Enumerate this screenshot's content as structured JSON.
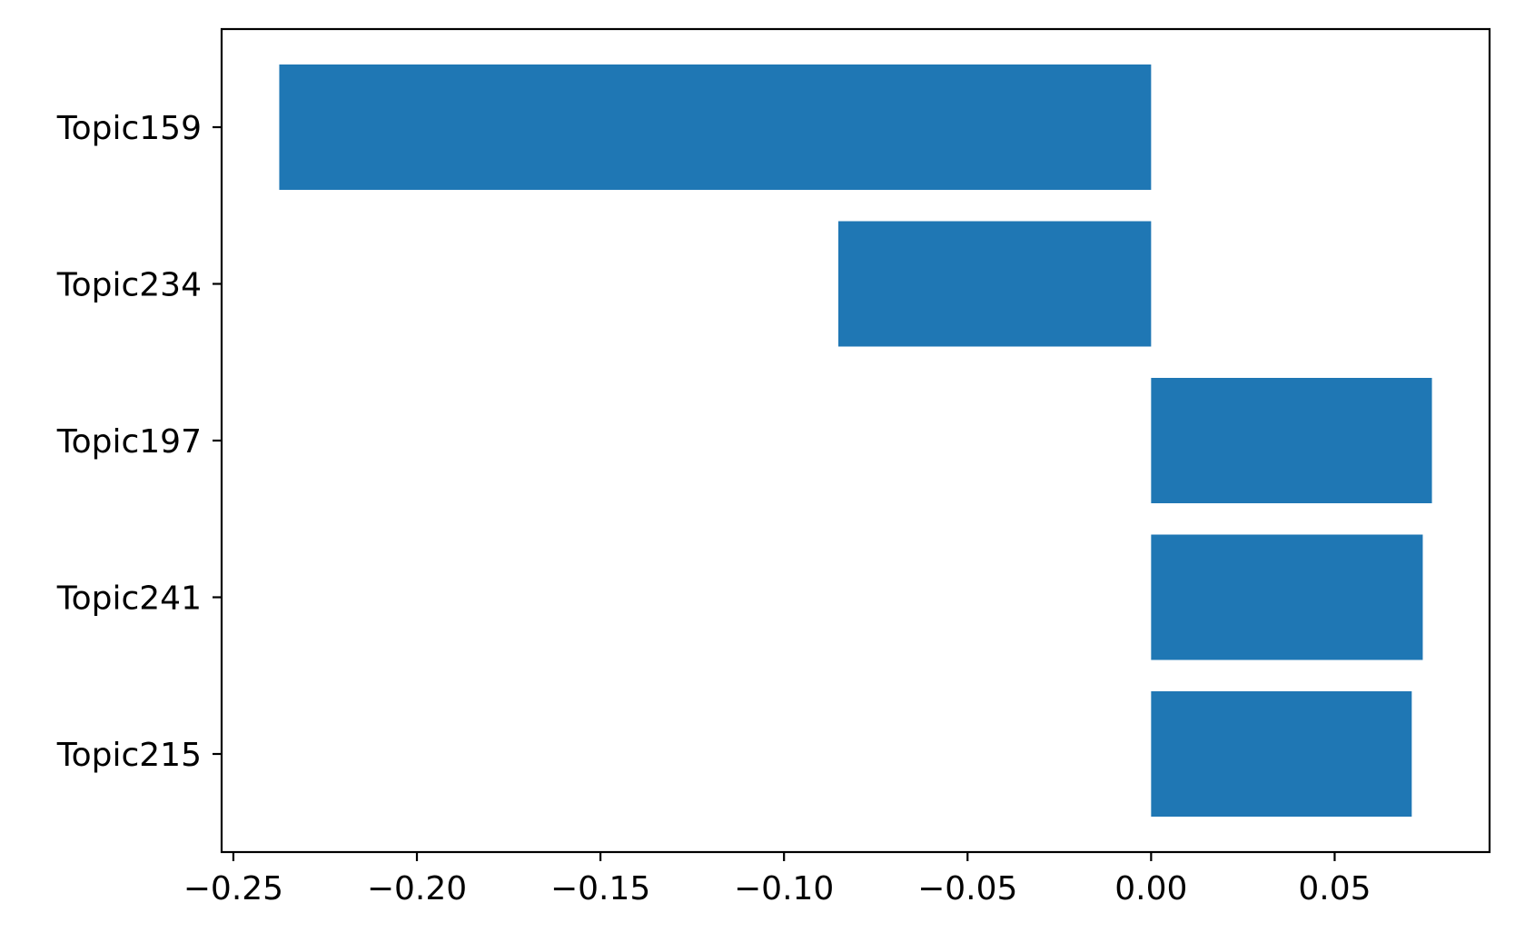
{
  "chart_data": {
    "type": "bar",
    "orientation": "horizontal",
    "categories": [
      "Topic159",
      "Topic234",
      "Topic197",
      "Topic241",
      "Topic215"
    ],
    "values": [
      -0.2375,
      -0.0852,
      0.0765,
      0.074,
      0.071
    ],
    "title": "",
    "xlabel": "",
    "ylabel": "",
    "xlim": [
      -0.2532,
      0.0922
    ],
    "x_ticks": [
      -0.25,
      -0.2,
      -0.15,
      -0.1,
      -0.05,
      0.0,
      0.05
    ],
    "x_tick_labels": [
      "−0.25",
      "−0.20",
      "−0.15",
      "−0.10",
      "−0.05",
      "0.00",
      "0.05"
    ],
    "bar_color": "#1f77b4",
    "grid": false,
    "legend": "none"
  }
}
